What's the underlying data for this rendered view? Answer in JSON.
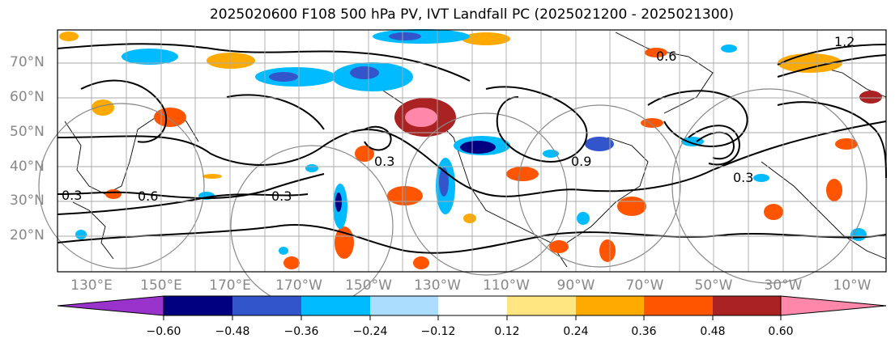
{
  "title": "2025020600 F108 500 hPa PV, IVT Landfall PC (2025021200 - 2025021300)",
  "lat_labels": [
    "70°N",
    "60°N",
    "50°N",
    "40°N",
    "30°N",
    "20°N"
  ],
  "lon_labels": [
    "130°E",
    "150°E",
    "170°E",
    "170°W",
    "150°W",
    "130°W",
    "110°W",
    "90°W",
    "70°W",
    "50°W",
    "30°W",
    "10°W"
  ],
  "contour_labels": [
    "1.2",
    "0.6",
    "0.3",
    "0.3",
    "0.6",
    "0.3",
    "0.3",
    "0.9"
  ],
  "colorbar": {
    "ticks": [
      "−0.60",
      "−0.48",
      "−0.36",
      "−0.24",
      "−0.12",
      "0.12",
      "0.24",
      "0.36",
      "0.48",
      "0.60"
    ],
    "colors": [
      "#9933cc",
      "#000080",
      "#3355cc",
      "#00bbff",
      "#aaddff",
      "#ffffff",
      "#ffe680",
      "#ffaa00",
      "#ff5500",
      "#aa2222",
      "#ff88aa"
    ]
  }
}
